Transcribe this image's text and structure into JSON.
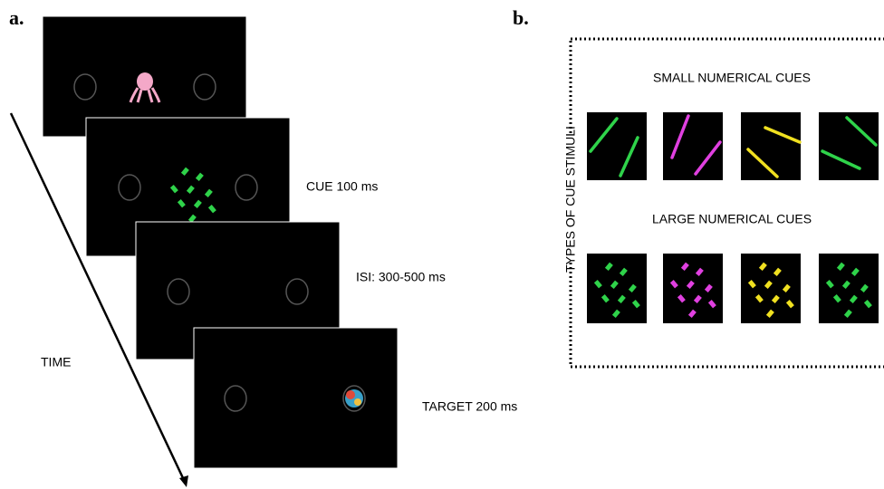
{
  "panel_a": {
    "label": "a.",
    "cue": "CUE 100 ms",
    "isi": "ISI: 300-500 ms",
    "target": "TARGET 200 ms",
    "time": "TIME"
  },
  "panel_b": {
    "label": "b.",
    "small_title": "SMALL NUMERICAL CUES",
    "large_title": "LARGE NUMERICAL CUES",
    "side_title": "TYPES OF CUE STIMULI"
  }
}
